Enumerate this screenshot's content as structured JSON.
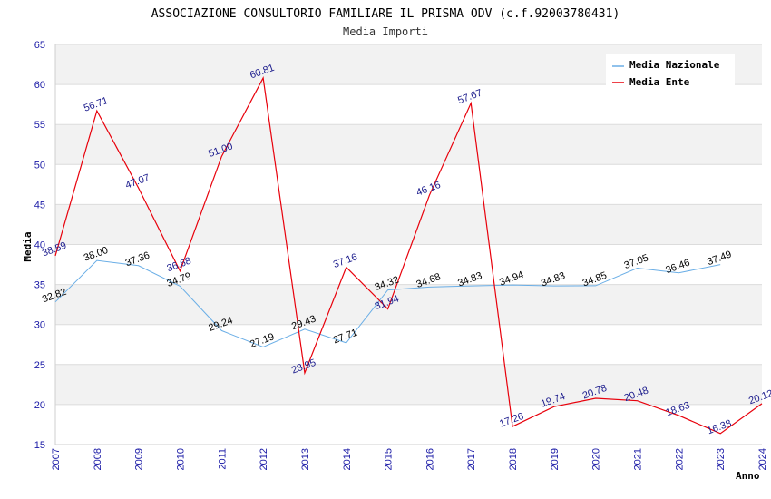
{
  "chart_data": {
    "type": "line",
    "title": "ASSOCIAZIONE CONSULTORIO FAMILIARE IL PRISMA ODV (c.f.92003780431)",
    "subtitle": "Media Importi",
    "xlabel": "Anno",
    "ylabel": "Media",
    "ylim": [
      15,
      65
    ],
    "yticks": [
      "15",
      "20",
      "25",
      "30",
      "35",
      "40",
      "45",
      "50",
      "55",
      "60",
      "65"
    ],
    "categories": [
      "2007",
      "2008",
      "2009",
      "2010",
      "2011",
      "2012",
      "2013",
      "2014",
      "2015",
      "2016",
      "2017",
      "2018",
      "2019",
      "2020",
      "2021",
      "2022",
      "2023",
      "2024"
    ],
    "grid": true,
    "legend_position": "top-right",
    "series": [
      {
        "name": "Media Nazionale",
        "color": "#6aaee6",
        "values": [
          32.82,
          38.0,
          37.36,
          34.79,
          29.24,
          27.19,
          29.43,
          27.71,
          34.32,
          34.68,
          34.83,
          34.94,
          34.83,
          34.85,
          37.05,
          36.46,
          37.49,
          null
        ],
        "labels": [
          "32.82",
          "38.00",
          "37.36",
          "34.79",
          "29.24",
          "27.19",
          "29.43",
          "27.71",
          "34.32",
          "34.68",
          "34.83",
          "34.94",
          "34.83",
          "34.85",
          "37.05",
          "36.46",
          "37.49",
          null
        ]
      },
      {
        "name": "Media Ente",
        "color": "#e8000b",
        "values": [
          38.59,
          56.71,
          47.07,
          36.68,
          51.0,
          60.81,
          23.95,
          37.16,
          31.94,
          46.16,
          57.67,
          17.26,
          19.74,
          20.78,
          20.48,
          18.63,
          16.38,
          20.12
        ],
        "labels": [
          "38.59",
          "56.71",
          "47.07",
          "36.68",
          "51.00",
          "60.81",
          "23.95",
          "37.16",
          "31.94",
          "46.16",
          "57.67",
          "17.26",
          "19.74",
          "20.78",
          "20.48",
          "18.63",
          "16.38",
          "20.12"
        ]
      }
    ]
  }
}
